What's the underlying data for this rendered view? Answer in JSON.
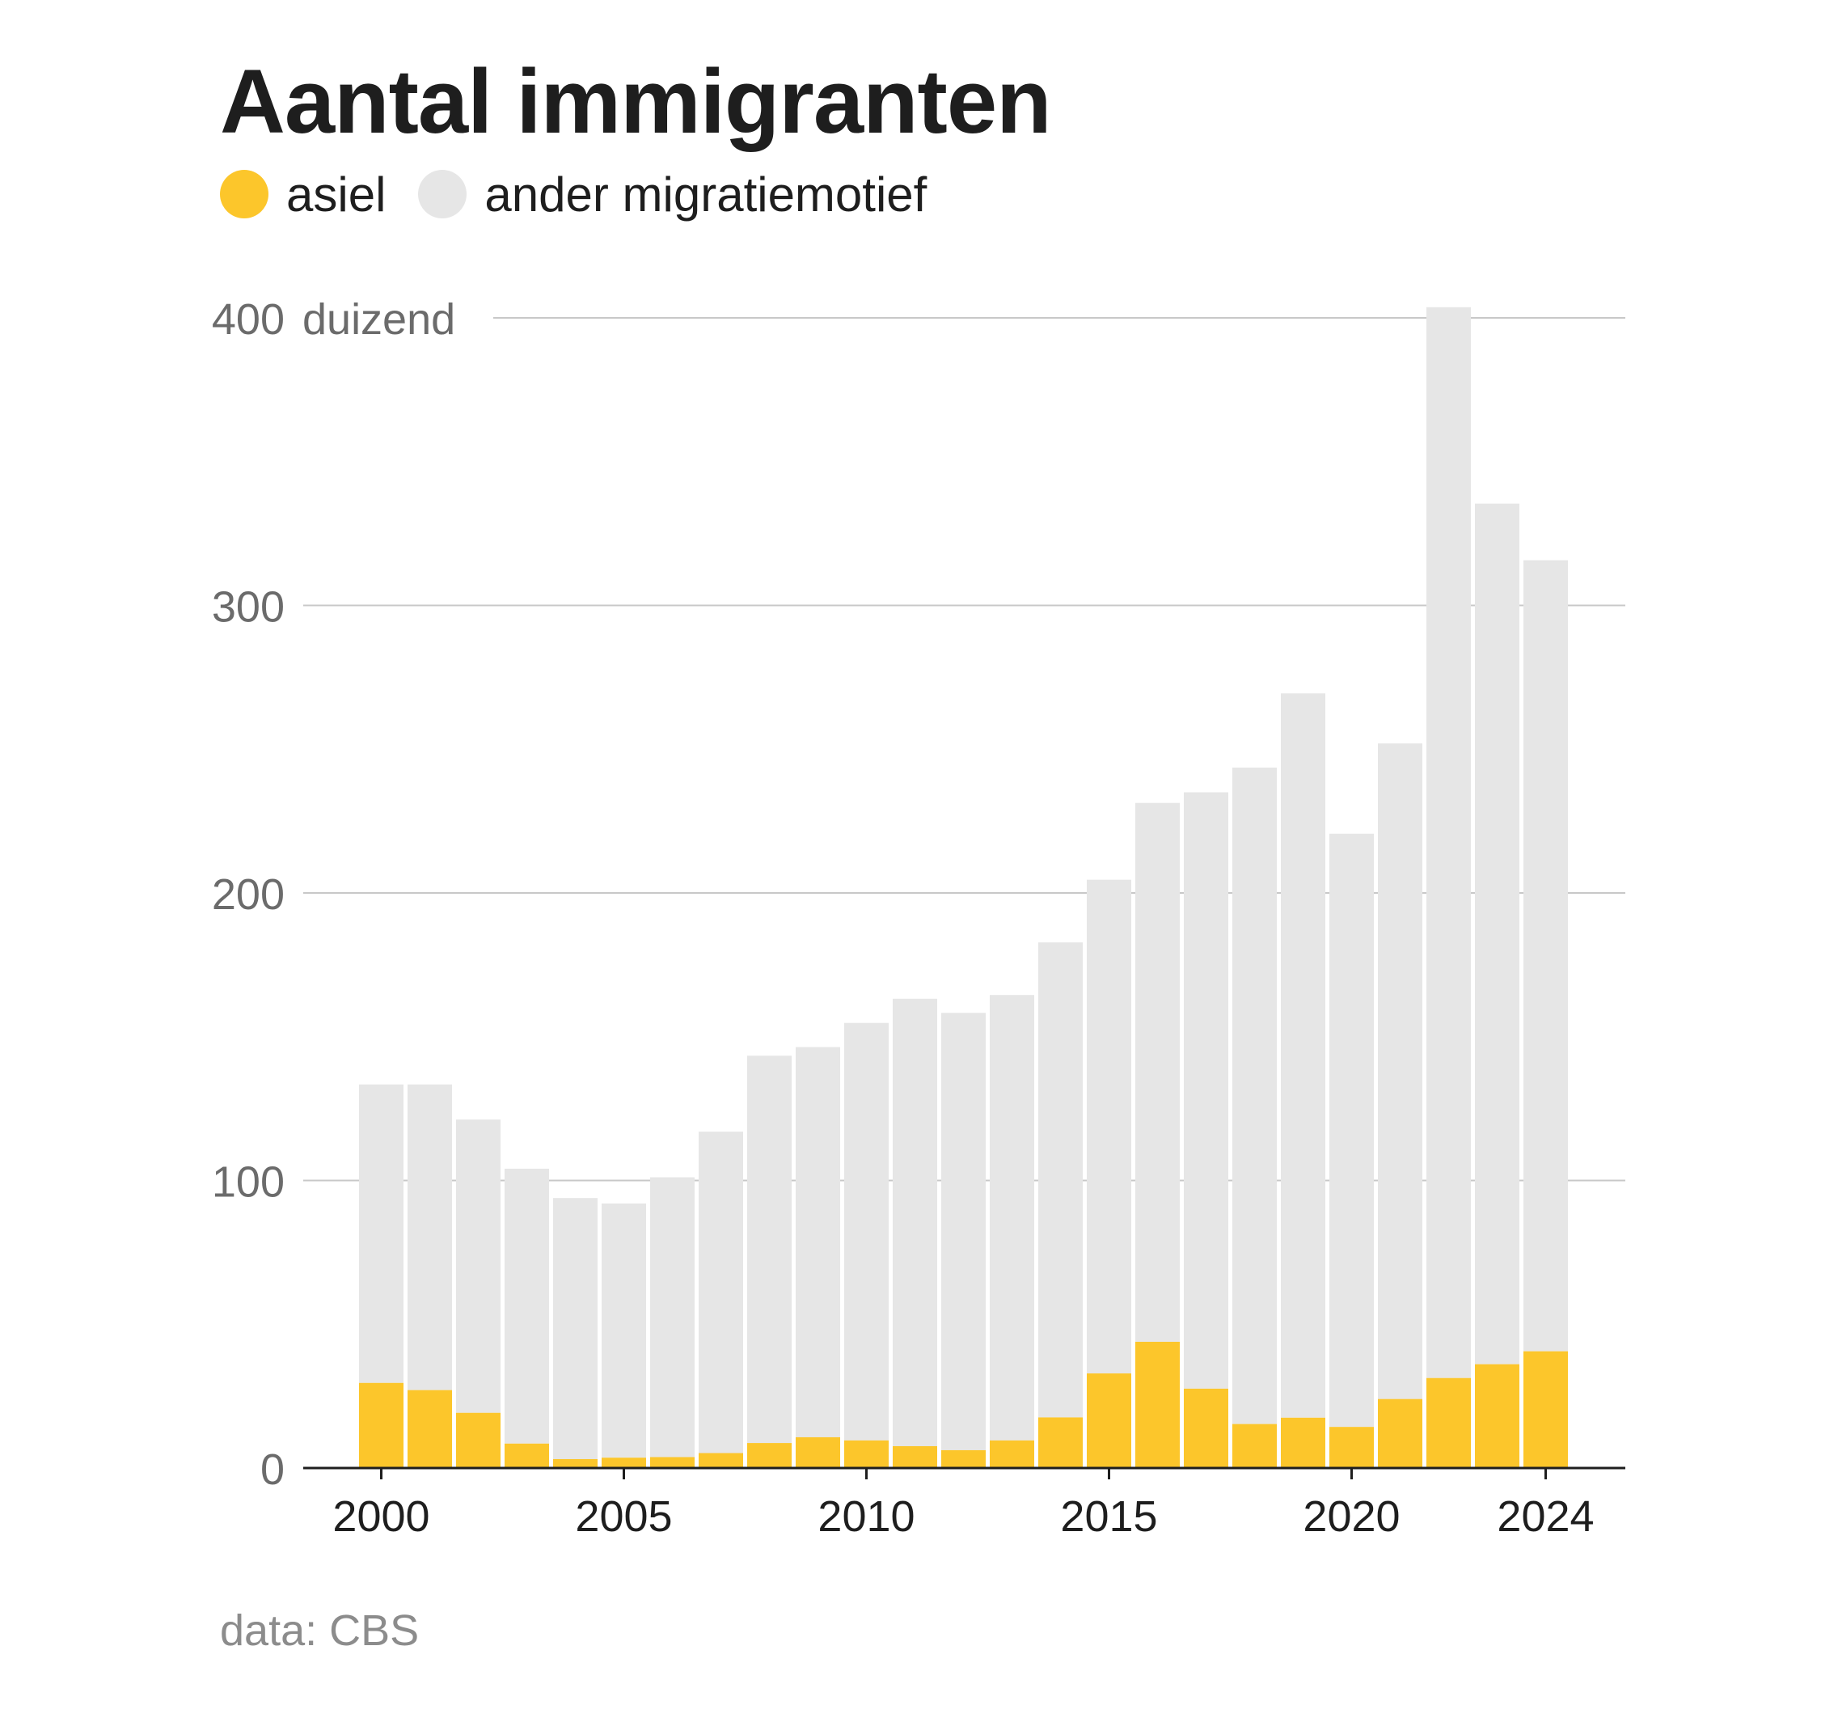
{
  "title": "Aantal immigranten",
  "source": "data: CBS",
  "legend": [
    {
      "label": "asiel",
      "color": "#fcc62b"
    },
    {
      "label": "ander migratiemotief",
      "color": "#e6e6e6"
    }
  ],
  "chart_data": {
    "type": "bar",
    "stacked": true,
    "title": "Aantal immigranten",
    "unit_label": "duizend",
    "x": [
      2000,
      2001,
      2002,
      2003,
      2004,
      2005,
      2006,
      2007,
      2008,
      2009,
      2010,
      2011,
      2012,
      2013,
      2014,
      2015,
      2016,
      2017,
      2018,
      2019,
      2020,
      2021,
      2022,
      2023,
      2024
    ],
    "series": [
      {
        "name": "asiel",
        "color": "#fcc62b",
        "values": [
          29.6,
          27.1,
          19.2,
          8.5,
          3.1,
          3.6,
          3.8,
          5.2,
          8.7,
          10.7,
          9.6,
          7.6,
          6.2,
          9.6,
          17.6,
          32.9,
          43.9,
          27.6,
          15.3,
          17.5,
          14.3,
          24.0,
          31.3,
          36.1,
          40.6
        ]
      },
      {
        "name": "ander migratiemotief",
        "color": "#e6e6e6",
        "values": [
          103.8,
          106.3,
          102.0,
          95.6,
          90.8,
          88.4,
          97.3,
          111.8,
          134.7,
          135.7,
          145.2,
          155.6,
          152.1,
          154.9,
          165.2,
          171.7,
          187.4,
          207.4,
          228.3,
          251.9,
          206.3,
          228.0,
          372.4,
          299.3,
          275.1
        ]
      }
    ],
    "totals": [
      133.4,
      133.4,
      121.2,
      104.1,
      93.9,
      92.0,
      101.1,
      117.0,
      143.4,
      146.4,
      154.8,
      163.2,
      158.3,
      164.5,
      182.8,
      204.6,
      231.3,
      235.0,
      243.6,
      269.4,
      220.6,
      252.0,
      403.7,
      335.4,
      315.7
    ],
    "ylim": [
      0,
      400
    ],
    "yticks": [
      0,
      100,
      200,
      300,
      400
    ],
    "xticks": [
      2000,
      2005,
      2010,
      2015,
      2020,
      2024
    ],
    "grid": true,
    "legend_position": "top-left"
  }
}
